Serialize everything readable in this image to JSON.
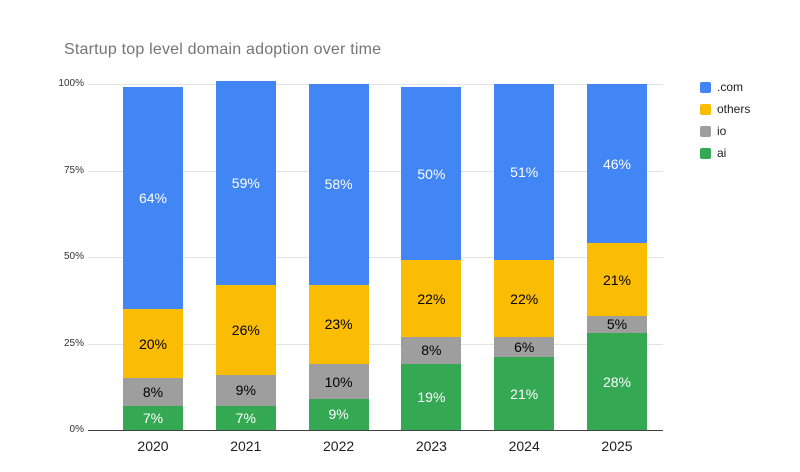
{
  "title": "Startup top level domain adoption over time",
  "chart_data": {
    "type": "bar",
    "stacked": true,
    "unit": "percent",
    "title": "Startup top level domain adoption over time",
    "xlabel": "",
    "ylabel": "",
    "categories": [
      "2020",
      "2021",
      "2022",
      "2023",
      "2024",
      "2025"
    ],
    "series": [
      {
        "name": ".com",
        "color": "#4285F4",
        "label_color": "#ffffff",
        "values": [
          64,
          59,
          58,
          50,
          51,
          46
        ]
      },
      {
        "name": "others",
        "color": "#FBBC04",
        "label_color": "#000000",
        "values": [
          20,
          26,
          23,
          22,
          22,
          21
        ]
      },
      {
        "name": "io",
        "color": "#9E9E9E",
        "label_color": "#000000",
        "values": [
          8,
          9,
          10,
          8,
          6,
          5
        ]
      },
      {
        "name": "ai",
        "color": "#34A853",
        "label_color": "#ffffff",
        "values": [
          7,
          7,
          9,
          19,
          21,
          28
        ]
      }
    ],
    "stack_order_bottom_to_top": [
      "ai",
      "io",
      "others",
      ".com"
    ],
    "data_label_format": "{value}%",
    "y_ticks": [
      {
        "value": 0,
        "label": "0%"
      },
      {
        "value": 25,
        "label": "25%"
      },
      {
        "value": 50,
        "label": "50%"
      },
      {
        "value": 75,
        "label": "75%"
      },
      {
        "value": 100,
        "label": "100%"
      }
    ],
    "ylim": [
      0,
      100
    ],
    "grid": true,
    "legend_position": "right",
    "colors": {
      "title_text": "#757575",
      "axis_text": "#333333",
      "gridline": "#e3e3e3",
      "axis_line": "#424242",
      "background": "#ffffff"
    }
  }
}
